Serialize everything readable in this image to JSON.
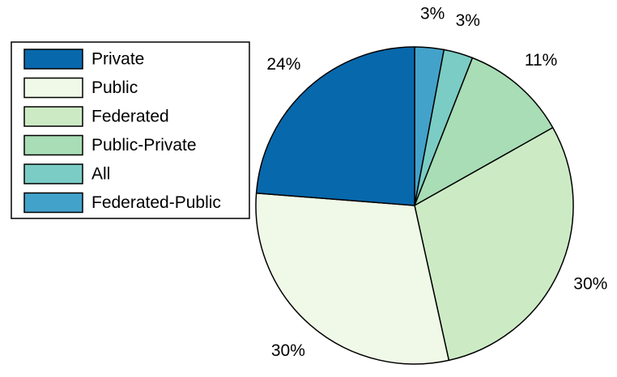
{
  "chart_data": {
    "type": "pie",
    "title": "",
    "start_angle_deg": 90,
    "direction": "clockwise",
    "legend_position": "top-left",
    "slices": [
      {
        "label": "Federated-Public",
        "value": 3,
        "display": "3%",
        "color": "#43a2ca"
      },
      {
        "label": "All",
        "value": 3,
        "display": "3%",
        "color": "#7bccc4"
      },
      {
        "label": "Public-Private",
        "value": 11,
        "display": "11%",
        "color": "#a8ddb5"
      },
      {
        "label": "Federated",
        "value": 30,
        "display": "30%",
        "color": "#ccebc5"
      },
      {
        "label": "Public",
        "value": 30,
        "display": "30%",
        "color": "#f0f9e8"
      },
      {
        "label": "Private",
        "value": 24,
        "display": "24%",
        "color": "#0868ac"
      }
    ],
    "legend": [
      {
        "label": "Private",
        "color": "#0868ac"
      },
      {
        "label": "Public",
        "color": "#f0f9e8"
      },
      {
        "label": "Federated",
        "color": "#ccebc5"
      },
      {
        "label": "Public-Private",
        "color": "#a8ddb5"
      },
      {
        "label": "All",
        "color": "#7bccc4"
      },
      {
        "label": "Federated-Public",
        "color": "#43a2ca"
      }
    ]
  }
}
